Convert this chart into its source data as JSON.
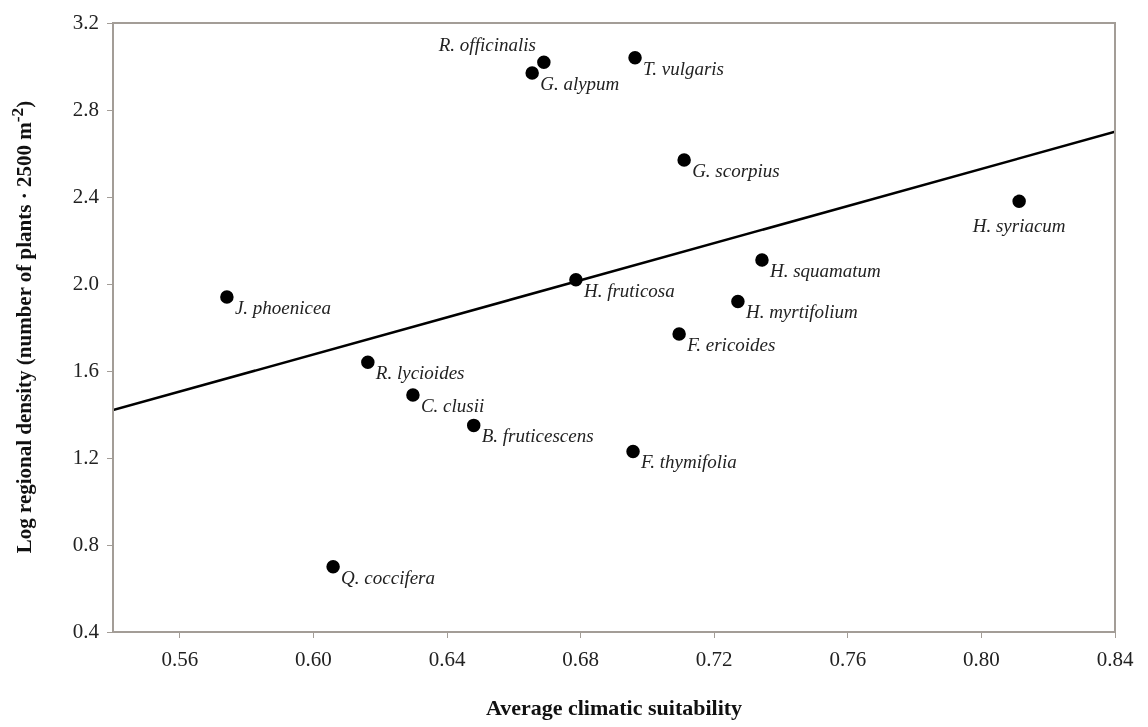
{
  "chart_data": {
    "type": "scatter",
    "xlabel": "Average climatic suitability",
    "ylabel": "Log regional density (number of plants · 2500 m$^{-2}$)",
    "xlim": [
      0.54,
      0.84
    ],
    "xticks": [
      0.56,
      {
        "value": 0.6,
        "label": "0.60"
      },
      0.64,
      0.68,
      0.72,
      0.76,
      {
        "value": 0.8,
        "label": "0.80"
      },
      0.84
    ],
    "ylim": [
      0.4,
      3.2
    ],
    "yticks": [
      0.4,
      0.8,
      1.2,
      1.6,
      {
        "value": 2,
        "label": "2.0"
      },
      2.4,
      2.8,
      3.2
    ],
    "grid": false,
    "legend": false,
    "marker": "circle",
    "series": [
      {
        "color": "#000000",
        "x": [
          0.669,
          0.6655,
          0.6963,
          0.711,
          0.8113,
          0.7343,
          0.6786,
          0.7271,
          0.7095,
          0.5741,
          0.6163,
          0.6298,
          0.648,
          0.6957,
          0.6059
        ],
        "values": [
          3.02,
          2.97,
          3.04,
          2.57,
          2.38,
          2.11,
          2.02,
          1.92,
          1.77,
          1.94,
          1.64,
          1.49,
          1.35,
          1.23,
          0.7
        ]
      },
      {
        "type": "line",
        "color": "#000000",
        "x": [
          0.54,
          0.84
        ],
        "values": [
          1.42,
          2.7
        ],
        "marker": "none"
      }
    ],
    "annotations": [
      {
        "text": "R. officinalis",
        "x": 0.669,
        "y": 3.02
      },
      {
        "text": "G. alypum",
        "x": 0.6655,
        "y": 2.97
      },
      {
        "text": "T. vulgaris",
        "x": 0.6963,
        "y": 3.04
      },
      {
        "text": "G. scorpius",
        "x": 0.711,
        "y": 2.57
      },
      {
        "text": "H. syriacum",
        "x": 0.8113,
        "y": 2.38
      },
      {
        "text": "H. squamatum",
        "x": 0.7343,
        "y": 2.11
      },
      {
        "text": "H. fruticosa",
        "x": 0.6786,
        "y": 2.02
      },
      {
        "text": "H. myrtifolium",
        "x": 0.7271,
        "y": 1.92
      },
      {
        "text": "F. ericoides",
        "x": 0.7095,
        "y": 1.77
      },
      {
        "text": "J. phoenicea",
        "x": 0.5741,
        "y": 1.94
      },
      {
        "text": "R. lycioides",
        "x": 0.6163,
        "y": 1.64
      },
      {
        "text": "C. clusii",
        "x": 0.6298,
        "y": 1.49
      },
      {
        "text": "B. fruticescens",
        "x": 0.648,
        "y": 1.35
      },
      {
        "text": "F. thymifolia",
        "x": 0.6957,
        "y": 1.23
      },
      {
        "text": "Q. coccifera",
        "x": 0.6059,
        "y": 0.7
      }
    ]
  }
}
